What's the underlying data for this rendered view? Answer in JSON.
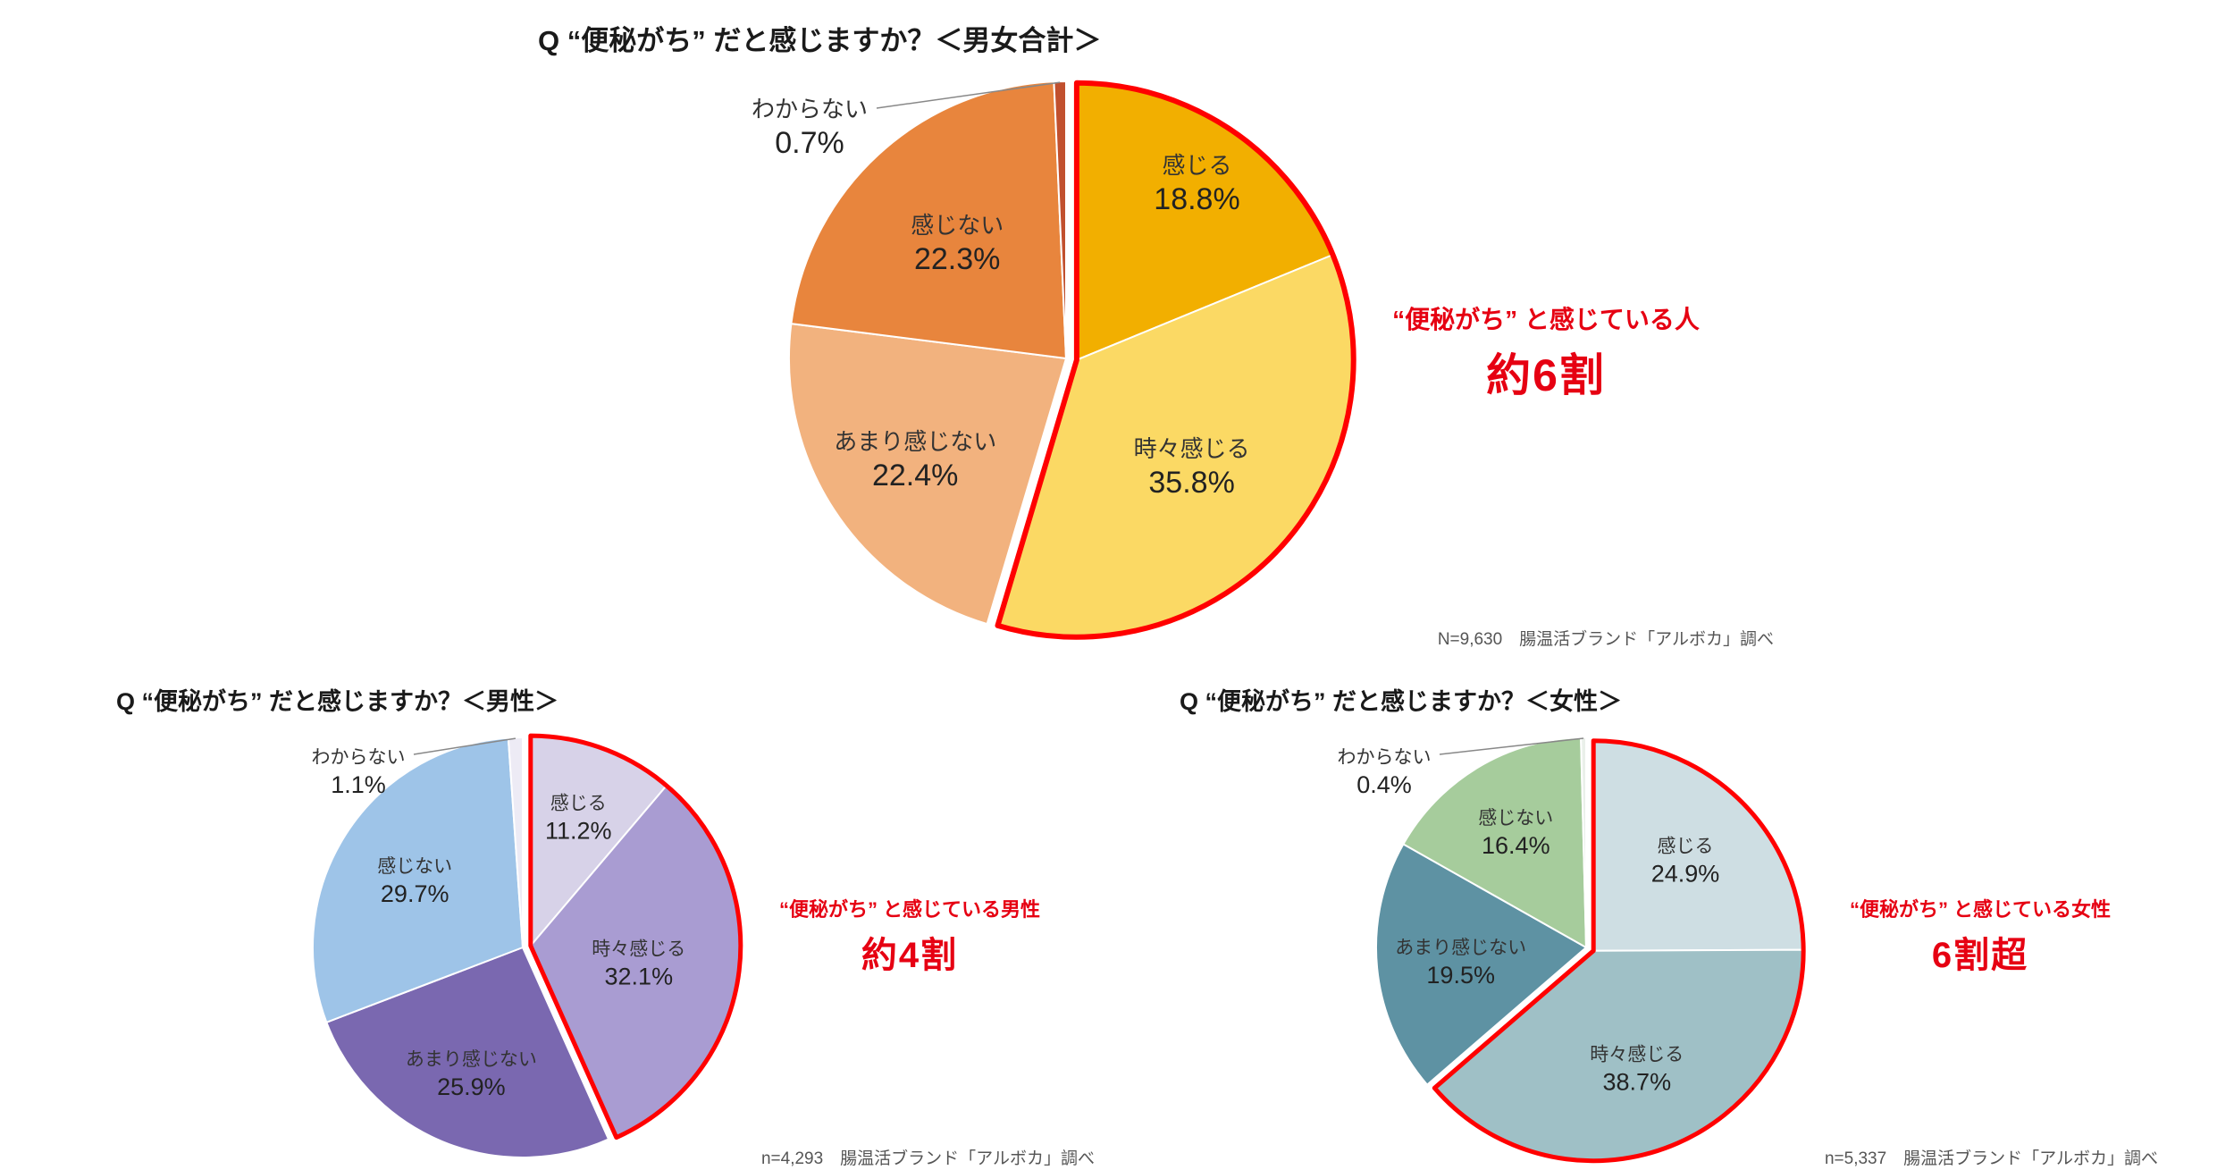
{
  "page": {
    "background": "#ffffff",
    "highlight_red": "#e60012"
  },
  "chart_data": [
    {
      "type": "pie",
      "title": "Q “便秘がち” だと感じますか？＜男女合計＞",
      "caption": "N=9,630　腸温活ブランド「アルボカ」調べ",
      "annotation": {
        "line1": "“便秘がち” と感じている人",
        "line2": "約6割"
      },
      "unit": "%",
      "slices": [
        {
          "label": "感じる",
          "value": 18.8,
          "color": "#F2AF00",
          "label_r": 0.78
        },
        {
          "label": "時々感じる",
          "value": 35.8,
          "color": "#FBD964",
          "label_r": 0.56
        },
        {
          "label": "あまり感じない",
          "value": 22.4,
          "color": "#F2B27E",
          "label_r": 0.65
        },
        {
          "label": "感じない",
          "value": 22.3,
          "color": "#E8853D",
          "label_r": 0.58
        },
        {
          "label": "わからない",
          "value": 0.7,
          "color": "#C1502E",
          "outside": true,
          "label_offset": [
            -287,
            -262
          ],
          "leader_start": [
            -212,
            -280
          ]
        }
      ],
      "highlight": {
        "slice_count": 2,
        "color": "#ff0000",
        "meaning": "感じる＋時々感じる＝約6割"
      }
    },
    {
      "type": "pie",
      "title": "Q “便秘がち” だと感じますか？＜男性＞",
      "caption": "n=4,293　腸温活ブランド「アルボカ」調べ",
      "annotation": {
        "line1": "“便秘がち” と感じている男性",
        "line2": "約4割"
      },
      "unit": "%",
      "slices": [
        {
          "label": "感じる",
          "value": 11.2,
          "color": "#D7D2E8",
          "label_r": 0.66
        },
        {
          "label": "時々感じる",
          "value": 32.1,
          "color": "#A99CD2",
          "label_r": 0.52
        },
        {
          "label": "あまり感じない",
          "value": 25.9,
          "color": "#7A68B0",
          "label_r": 0.64
        },
        {
          "label": "感じない",
          "value": 29.7,
          "color": "#9EC4E8",
          "label_r": 0.61
        },
        {
          "label": "わからない",
          "value": 1.1,
          "color": "#EDEBF5",
          "outside": true,
          "label_offset": [
            -184,
            -199
          ],
          "leader_start": [
            -122,
            -216
          ]
        }
      ],
      "highlight": {
        "slice_count": 2,
        "color": "#ff0000",
        "meaning": "感じる＋時々感じる＝約4割"
      }
    },
    {
      "type": "pie",
      "title": "Q “便秘がち” だと感じますか？＜女性＞",
      "caption": "n=5,337　腸温活ブランド「アルボカ」調べ",
      "annotation": {
        "line1": "“便秘がち” と感じている女性",
        "line2": "6割超"
      },
      "unit": "%",
      "slices": [
        {
          "label": "感じる",
          "value": 24.9,
          "color": "#CEDEE3",
          "label_r": 0.62
        },
        {
          "label": "時々感じる",
          "value": 38.7,
          "color": "#9FC0C6",
          "label_r": 0.59
        },
        {
          "label": "あまり感じない",
          "value": 19.5,
          "color": "#5E92A3",
          "label_r": 0.6
        },
        {
          "label": "感じない",
          "value": 16.4,
          "color": "#A6CC9C",
          "label_r": 0.65
        },
        {
          "label": "わからない",
          "value": 0.4,
          "color": "#EAF0EA",
          "outside": true,
          "label_offset": [
            -226,
            -199
          ],
          "leader_start": [
            -164,
            -216
          ]
        }
      ],
      "highlight": {
        "slice_count": 2,
        "color": "#ff0000",
        "meaning": "感じる＋時々感じる＝6割超"
      }
    }
  ]
}
